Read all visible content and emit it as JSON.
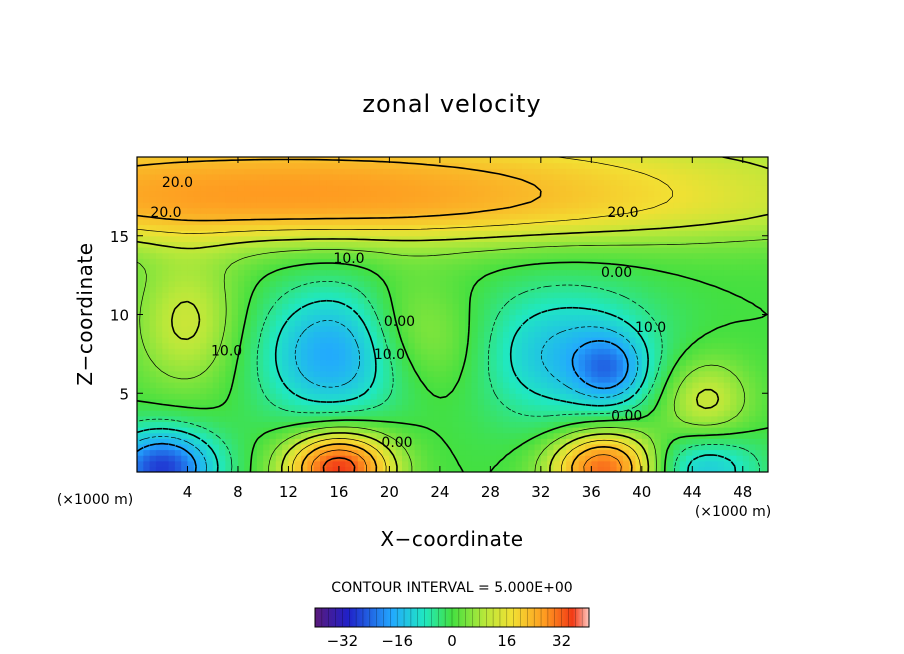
{
  "chart_data": {
    "type": "heatmap",
    "title": "zonal velocity",
    "xlabel": "X−coordinate",
    "ylabel": "Z−coordinate",
    "x_unit_left": "(×1000 m)",
    "x_unit_right": "(×1000 m)",
    "xlim": [
      0,
      50
    ],
    "ylim": [
      0,
      20
    ],
    "x_ticks": [
      4,
      8,
      12,
      16,
      20,
      24,
      28,
      32,
      36,
      40,
      44,
      48
    ],
    "y_ticks": [
      5,
      10,
      15
    ],
    "contour_interval_text": "CONTOUR INTERVAL = 5.000E+00",
    "colorbar": {
      "range": [
        -40,
        40
      ],
      "ticks": [
        -32,
        -16,
        0,
        16,
        32
      ]
    },
    "contour_labels": [
      {
        "text": "20.0",
        "x": 3.2,
        "z": 18.4
      },
      {
        "text": "20.0",
        "x": 2.3,
        "z": 16.5
      },
      {
        "text": "20.0",
        "x": 38.5,
        "z": 16.5
      },
      {
        "text": "10.0",
        "x": 16.8,
        "z": 13.6
      },
      {
        "text": "0.00",
        "x": 38.0,
        "z": 12.7
      },
      {
        "text": "0.00",
        "x": 20.8,
        "z": 9.6
      },
      {
        "text": "10.0",
        "x": 7.1,
        "z": 7.7
      },
      {
        "text": "10.0",
        "x": 20.0,
        "z": 7.5
      },
      {
        "text": "10.0",
        "x": 40.7,
        "z": 9.2
      },
      {
        "text": "0.00",
        "x": 20.6,
        "z": 1.9
      },
      {
        "text": "0.00",
        "x": 38.8,
        "z": 3.6
      }
    ],
    "features": [
      {
        "x": 12,
        "z": 18.5,
        "value": 23,
        "sx": 30,
        "sz": 2.5
      },
      {
        "x": 14,
        "z": 16.2,
        "value": 6,
        "sx": 30,
        "sz": 1.3
      },
      {
        "x": 4,
        "z": 9.5,
        "value": 11,
        "sx": 3,
        "sz": 3
      },
      {
        "x": 15.5,
        "z": 7.5,
        "value": -20,
        "sx": 4,
        "sz": 3
      },
      {
        "x": 21,
        "z": 9,
        "value": 7,
        "sx": 2.5,
        "sz": 2.5
      },
      {
        "x": 25,
        "z": 8,
        "value": 5,
        "sx": 2.5,
        "sz": 2.5
      },
      {
        "x": 34,
        "z": 7.5,
        "value": -16,
        "sx": 5,
        "sz": 3
      },
      {
        "x": 37.5,
        "z": 6.5,
        "value": -14,
        "sx": 2,
        "sz": 1.6
      },
      {
        "x": 45,
        "z": 4.5,
        "value": 12,
        "sx": 2.5,
        "sz": 2
      },
      {
        "x": 2,
        "z": 0.3,
        "value": -30,
        "sx": 3,
        "sz": 1.7
      },
      {
        "x": 16,
        "z": 0.3,
        "value": 34,
        "sx": 3,
        "sz": 1.7
      },
      {
        "x": 37,
        "z": 0.3,
        "value": 30,
        "sx": 3,
        "sz": 1.7
      },
      {
        "x": 45,
        "z": 0.3,
        "value": -15,
        "sx": 3,
        "sz": 1.6
      }
    ]
  }
}
